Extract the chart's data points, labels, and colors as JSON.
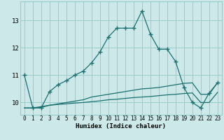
{
  "xlabel": "Humidex (Indice chaleur)",
  "bg": "#cce8e8",
  "grid_color": "#99cccc",
  "line_color": "#1a7070",
  "x": [
    0,
    1,
    2,
    3,
    4,
    5,
    6,
    7,
    8,
    9,
    10,
    11,
    12,
    13,
    14,
    15,
    16,
    17,
    18,
    19,
    20,
    21,
    22,
    23
  ],
  "main_line": [
    11.0,
    9.8,
    9.8,
    10.4,
    10.65,
    10.8,
    11.0,
    11.15,
    11.45,
    11.85,
    12.4,
    12.72,
    12.72,
    12.72,
    13.35,
    12.5,
    11.95,
    11.95,
    11.5,
    10.55,
    10.0,
    9.8,
    10.35,
    10.72
  ],
  "flat_line1": [
    9.8,
    9.8,
    9.82,
    9.9,
    9.95,
    10.0,
    10.05,
    10.1,
    10.2,
    10.25,
    10.3,
    10.35,
    10.4,
    10.45,
    10.5,
    10.52,
    10.55,
    10.6,
    10.65,
    10.7,
    10.72,
    10.3,
    10.3,
    10.73
  ],
  "flat_line2": [
    9.8,
    9.8,
    9.85,
    9.9,
    9.93,
    9.95,
    9.98,
    10.0,
    10.03,
    10.06,
    10.1,
    10.12,
    10.15,
    10.18,
    10.2,
    10.22,
    10.25,
    10.28,
    10.3,
    10.33,
    10.35,
    10.0,
    10.0,
    10.37
  ],
  "ylim": [
    9.55,
    13.7
  ],
  "xlim": [
    -0.5,
    23.5
  ],
  "yticks": [
    10,
    11,
    12,
    13
  ],
  "xticks": [
    0,
    1,
    2,
    3,
    4,
    5,
    6,
    7,
    8,
    9,
    10,
    11,
    12,
    13,
    14,
    15,
    16,
    17,
    18,
    19,
    20,
    21,
    22,
    23
  ]
}
